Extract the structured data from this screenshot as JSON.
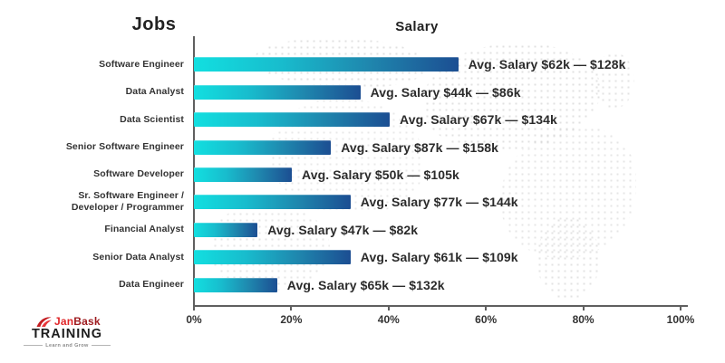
{
  "titles": {
    "jobs": "Jobs",
    "salary": "Salary"
  },
  "chart_data": {
    "type": "bar",
    "orientation": "horizontal",
    "title": "Salary",
    "categories_title": "Jobs",
    "categories": [
      "Software Engineer",
      "Data Analyst",
      "Data Scientist",
      "Senior Software Engineer",
      "Software Developer",
      "Sr. Software Engineer / Developer / Programmer",
      "Financial Analyst",
      "Senior Data Analyst",
      "Data Engineer"
    ],
    "values_percent": [
      54,
      34,
      40,
      28,
      20,
      32,
      13,
      32,
      17
    ],
    "bar_labels": [
      "Avg. Salary $62k — $128k",
      "Avg. Salary $44k — $86k",
      "Avg. Salary $67k — $134k",
      "Avg. Salary $87k — $158k",
      "Avg. Salary $50k — $105k",
      "Avg. Salary $77k — $144k",
      "Avg. Salary $47k — $82k",
      "Avg. Salary $61k — $109k",
      "Avg. Salary $65k — $132k"
    ],
    "x_ticks": [
      "0%",
      "20%",
      "40%",
      "60%",
      "80%",
      "100%"
    ],
    "xlim": [
      0,
      100
    ],
    "grid": false,
    "legend": "none",
    "colors": {
      "bar_gradient_start": "#12dfe0",
      "bar_gradient_end": "#1c4e92",
      "axis": "#5f5f5f",
      "text": "#2d2d2d",
      "map_dots": "#c9c9c9"
    }
  },
  "logo": {
    "brand_jan": "Jan",
    "brand_bask": "Bask",
    "training": "TRAINING",
    "tagline": "Learn and Grow",
    "colors": {
      "jan": "#e02528",
      "bask": "#9e1c20",
      "training": "#1d1d1d"
    }
  }
}
